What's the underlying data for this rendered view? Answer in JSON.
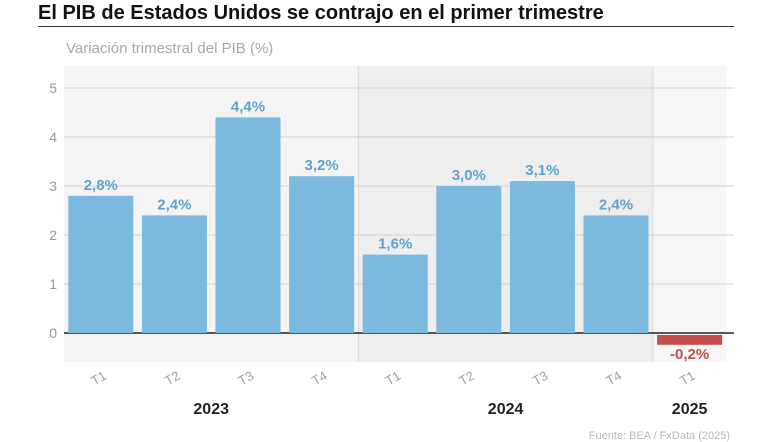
{
  "chart_data": {
    "type": "bar",
    "title": "El PIB de Estados Unidos se contrajo en el primer trimestre",
    "subtitle": "Variación trimestral del PIB (%)",
    "xlabel": "",
    "ylabel": "Variación trimestral del PIB (%)",
    "ylim": [
      -0.4,
      5.5
    ],
    "yticks": [
      0,
      1,
      2,
      3,
      4,
      5
    ],
    "grid": true,
    "categories": [
      "T1",
      "T2",
      "T3",
      "T4",
      "T1",
      "T2",
      "T3",
      "T4",
      "T1"
    ],
    "values": [
      2.8,
      2.4,
      4.4,
      3.2,
      1.6,
      3.0,
      3.1,
      2.4,
      -0.2
    ],
    "data_labels": [
      "2,8%",
      "2,4%",
      "4,4%",
      "3,2%",
      "1,6%",
      "3,0%",
      "3,1%",
      "2,4%",
      "-0,2%"
    ],
    "groups": [
      {
        "label": "2023",
        "categories": [
          "T1",
          "T2",
          "T3",
          "T4"
        ]
      },
      {
        "label": "2024",
        "categories": [
          "T1",
          "T2",
          "T3",
          "T4"
        ]
      },
      {
        "label": "2025",
        "categories": [
          "T1"
        ]
      }
    ],
    "colors": {
      "positive": "#7cb9df",
      "negative": "#c44d4d",
      "positive_label": "#5ea3cf",
      "negative_label": "#c44d4d"
    }
  },
  "source": "Fuente: BEA / FxData (2025)"
}
